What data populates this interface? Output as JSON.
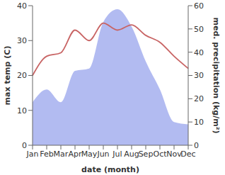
{
  "chart_data": {
    "type": "line",
    "x_label": "date (month)",
    "y_label": "max temp (C)",
    "y2_label": "med. precipitation (kg/m²)",
    "categories": [
      "Jan",
      "Feb",
      "Mar",
      "Apr",
      "May",
      "Jun",
      "Jul",
      "Aug",
      "Sep",
      "Oct",
      "Nov",
      "Dec"
    ],
    "ylim": [
      0,
      40
    ],
    "yticks": [
      0,
      10,
      20,
      30,
      40
    ],
    "y2lim": [
      0,
      60
    ],
    "y2ticks": [
      0,
      10,
      20,
      30,
      40,
      50,
      60
    ],
    "grid": false,
    "series": [
      {
        "type": "line",
        "color": "#c86464",
        "values": [
          20,
          25.5,
          26.5,
          33,
          30,
          35,
          33,
          34.5,
          31.5,
          29.5,
          25.5,
          22
        ]
      },
      {
        "type": "area",
        "axis": "y2",
        "color": "#aab4f0",
        "values": [
          18.5,
          24,
          18.5,
          32,
          33,
          53,
          58.5,
          51,
          36,
          24,
          10,
          9
        ]
      }
    ]
  }
}
